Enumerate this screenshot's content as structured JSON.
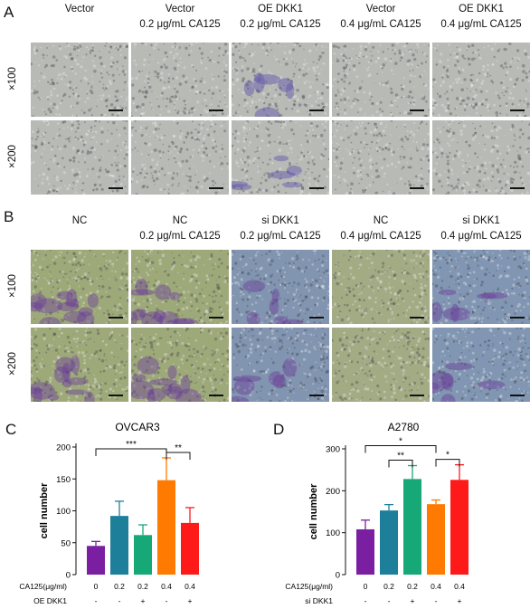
{
  "panels": {
    "A": {
      "letter": "A",
      "columns": [
        {
          "line1": "Vector",
          "line2": ""
        },
        {
          "line1": "Vector",
          "line2": "0.2 μg/mL CA125"
        },
        {
          "line1": "OE DKK1",
          "line2": "0.2 μg/mL CA125"
        },
        {
          "line1": "Vector",
          "line2": "0.4 μg/mL CA125"
        },
        {
          "line1": "OE DKK1",
          "line2": "0.4 μg/mL CA125"
        }
      ],
      "rows": [
        "×100",
        "×200"
      ],
      "base_color": "#b8bab6",
      "stain_color": "#5a4fa8"
    },
    "B": {
      "letter": "B",
      "columns": [
        {
          "line1": "NC",
          "line2": ""
        },
        {
          "line1": "NC",
          "line2": "0.2 μg/mL CA125"
        },
        {
          "line1": "si DKK1",
          "line2": "0.2 μg/mL CA125"
        },
        {
          "line1": "NC",
          "line2": "0.4 μg/mL CA125"
        },
        {
          "line1": "si DKK1",
          "line2": "0.4 μg/mL CA125"
        }
      ],
      "rows": [
        "×100",
        "×200"
      ],
      "colors": [
        "#9ea97a",
        "#9ea97a",
        "#8194b0",
        "#a3ab85",
        "#8196b2"
      ],
      "stain_color": "#6b3f9a"
    }
  },
  "chart_data": [
    {
      "panel": "C",
      "type": "bar",
      "title": "OVCAR3",
      "ylabel": "cell number",
      "ylim": [
        0,
        200
      ],
      "yticks": [
        0,
        50,
        100,
        150,
        200
      ],
      "categories": [
        "0",
        "0.2",
        "0.2",
        "0.4",
        "0.4"
      ],
      "values": [
        45,
        92,
        62,
        148,
        81
      ],
      "errors": [
        7,
        23,
        16,
        35,
        24
      ],
      "colors": [
        "#7b1fa2",
        "#1e7f9b",
        "#17a878",
        "#ff7a00",
        "#ff1a1a"
      ],
      "treatment_rows": [
        {
          "label": "CA125(μg/ml)",
          "values": [
            "0",
            "0.2",
            "0.2",
            "0.4",
            "0.4"
          ]
        },
        {
          "label": "OE DKK1",
          "values": [
            "-",
            "-",
            "+",
            "-",
            "+"
          ]
        }
      ],
      "significance": [
        {
          "from": 0,
          "to": 3,
          "label": "***"
        },
        {
          "from": 3,
          "to": 4,
          "label": "**"
        }
      ]
    },
    {
      "panel": "D",
      "type": "bar",
      "title": "A2780",
      "ylabel": "cell number",
      "ylim": [
        0,
        300
      ],
      "yticks": [
        0,
        100,
        200,
        300
      ],
      "categories": [
        "0",
        "0.2",
        "0.2",
        "0.4",
        "0.4"
      ],
      "values": [
        108,
        153,
        228,
        168,
        226
      ],
      "errors": [
        22,
        14,
        32,
        10,
        36
      ],
      "colors": [
        "#7b1fa2",
        "#1e7f9b",
        "#17a878",
        "#ff7a00",
        "#ff1a1a"
      ],
      "treatment_rows": [
        {
          "label": "CA125(μg/ml)",
          "values": [
            "0",
            "0.2",
            "0.2",
            "0.4",
            "0.4"
          ]
        },
        {
          "label": "si DKK1",
          "values": [
            "-",
            "-",
            "+",
            "-",
            "+"
          ]
        }
      ],
      "significance": [
        {
          "from": 0,
          "to": 3,
          "label": "*"
        },
        {
          "from": 1,
          "to": 2,
          "label": "**"
        },
        {
          "from": 3,
          "to": 4,
          "label": "*"
        }
      ]
    }
  ]
}
